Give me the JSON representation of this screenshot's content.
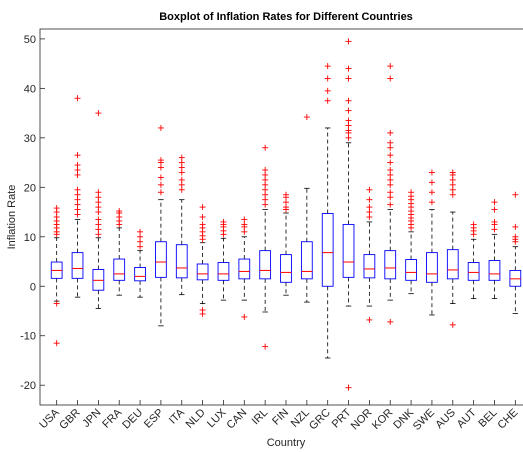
{
  "chart_data": {
    "type": "boxplot",
    "title": "Boxplot of Inflation Rates for Different Countries",
    "xlabel": "Country",
    "ylabel": "Inflation Rate",
    "ylim": [
      -24,
      52
    ],
    "yticks": [
      -20,
      -10,
      0,
      10,
      20,
      30,
      40,
      50
    ],
    "grid": false,
    "colors": {
      "box": "#0000ff",
      "median": "#ff0000",
      "outlier": "#ff0000",
      "whisker": "#000000"
    },
    "categories": [
      "USA",
      "GBR",
      "JPN",
      "FRA",
      "DEU",
      "ESP",
      "ITA",
      "NLD",
      "LUX",
      "CAN",
      "IRL",
      "FIN",
      "NZL",
      "GRC",
      "PRT",
      "NOR",
      "KOR",
      "DNK",
      "SWE",
      "AUS",
      "AUT",
      "BEL",
      "CHE"
    ],
    "boxes": [
      {
        "category": "USA",
        "whisker_low": -3,
        "q1": 1.6,
        "median": 3.2,
        "q3": 4.9,
        "whisker_high": 9.8,
        "outliers": [
          10.5,
          11,
          11.8,
          12.5,
          13.2,
          14,
          15,
          15.8,
          -3.5,
          -11.5
        ]
      },
      {
        "category": "GBR",
        "whisker_low": -2.2,
        "q1": 1.6,
        "median": 3.6,
        "q3": 6.8,
        "whisker_high": 13.5,
        "outliers": [
          14.5,
          15.5,
          16.5,
          17.5,
          18.5,
          19.5,
          22.5,
          23.5,
          24.5,
          26.5,
          38
        ]
      },
      {
        "category": "JPN",
        "whisker_low": -4.5,
        "q1": -0.8,
        "median": 1.2,
        "q3": 3.4,
        "whisker_high": 9.8,
        "outliers": [
          10.5,
          11.5,
          12.5,
          13.5,
          15,
          16,
          17,
          18,
          19,
          35
        ]
      },
      {
        "category": "FRA",
        "whisker_low": -1.8,
        "q1": 1.2,
        "median": 2.5,
        "q3": 5.5,
        "whisker_high": 11.8,
        "outliers": [
          12.5,
          13.2,
          14,
          14.8,
          15.2
        ]
      },
      {
        "category": "DEU",
        "whisker_low": -2.2,
        "q1": 1.1,
        "median": 2,
        "q3": 3.8,
        "whisker_high": 7.2,
        "outliers": [
          8,
          9,
          10,
          11
        ]
      },
      {
        "category": "ESP",
        "whisker_low": -8,
        "q1": 1.8,
        "median": 4.9,
        "q3": 9,
        "whisker_high": 17.5,
        "outliers": [
          19,
          20.5,
          22,
          24,
          25,
          25.5,
          32
        ]
      },
      {
        "category": "ITA",
        "whisker_low": -1.7,
        "q1": 1.7,
        "median": 3.7,
        "q3": 8.4,
        "whisker_high": 17.5,
        "outliers": [
          19.5,
          20.5,
          21.5,
          23,
          24,
          25,
          26
        ]
      },
      {
        "category": "NLD",
        "whisker_low": -3.5,
        "q1": 1.3,
        "median": 2.5,
        "q3": 4.5,
        "whisker_high": 8.8,
        "outliers": [
          9.5,
          10.2,
          11,
          11.8,
          12.5,
          14,
          16,
          -4.8,
          -5.6
        ]
      },
      {
        "category": "LUX",
        "whisker_low": -2.8,
        "q1": 1.2,
        "median": 2.5,
        "q3": 4.8,
        "whisker_high": 9.7,
        "outliers": [
          10.5,
          11.2,
          12,
          12.5,
          13
        ]
      },
      {
        "category": "CAN",
        "whisker_low": -2.8,
        "q1": 1.5,
        "median": 3,
        "q3": 5.5,
        "whisker_high": 10,
        "outliers": [
          11,
          12,
          12.5,
          13.5,
          -6.2
        ]
      },
      {
        "category": "IRL",
        "whisker_low": -5.2,
        "q1": 1.5,
        "median": 3.2,
        "q3": 7.2,
        "whisker_high": 15.5,
        "outliers": [
          16.5,
          17.5,
          18.5,
          19.5,
          20.5,
          21.5,
          22.5,
          23.5,
          28,
          -12.2
        ]
      },
      {
        "category": "FIN",
        "whisker_low": -1.8,
        "q1": 0.8,
        "median": 2.8,
        "q3": 6.4,
        "whisker_high": 14.8,
        "outliers": [
          15.5,
          16,
          17,
          18,
          18.5
        ]
      },
      {
        "category": "NZL",
        "whisker_low": -3.2,
        "q1": 1.5,
        "median": 3,
        "q3": 9,
        "whisker_high": 19.8,
        "outliers": [
          34.2
        ]
      },
      {
        "category": "GRC",
        "whisker_low": -14.5,
        "q1": 0,
        "median": 6.8,
        "q3": 14.7,
        "whisker_high": 32,
        "outliers": [
          37.5,
          39.5,
          42,
          44.5
        ]
      },
      {
        "category": "PRT",
        "whisker_low": -4,
        "q1": 1.8,
        "median": 4.9,
        "q3": 12.5,
        "whisker_high": 29,
        "outliers": [
          30,
          31,
          31.5,
          32.5,
          33.5,
          35.5,
          37.5,
          42,
          44,
          49.5,
          -20.5
        ]
      },
      {
        "category": "NOR",
        "whisker_low": -4,
        "q1": 1.7,
        "median": 3.5,
        "q3": 6.4,
        "whisker_high": 13,
        "outliers": [
          14,
          15,
          16,
          17.5,
          19.5,
          -6.8
        ]
      },
      {
        "category": "KOR",
        "whisker_low": -2.8,
        "q1": 1.5,
        "median": 3.7,
        "q3": 7.2,
        "whisker_high": 15.5,
        "outliers": [
          16.5,
          18,
          19,
          20.5,
          21.5,
          22.5,
          23.5,
          25,
          26.5,
          28,
          29,
          31,
          42,
          44.5,
          -7.2
        ]
      },
      {
        "category": "DNK",
        "whisker_low": -1.5,
        "q1": 1.2,
        "median": 2.8,
        "q3": 5.4,
        "whisker_high": 11,
        "outliers": [
          11.8,
          12.5,
          13.2,
          13.8,
          14.5,
          15.2,
          16,
          16.7,
          17.5,
          18.2,
          19
        ]
      },
      {
        "category": "SWE",
        "whisker_low": -5.8,
        "q1": 0.8,
        "median": 2.5,
        "q3": 6.8,
        "whisker_high": 15.5,
        "outliers": [
          17,
          19,
          21,
          23
        ]
      },
      {
        "category": "AUS",
        "whisker_low": -3.5,
        "q1": 1.5,
        "median": 3.3,
        "q3": 7.4,
        "whisker_high": 15,
        "outliers": [
          18.5,
          19.5,
          20.5,
          21.5,
          22.5,
          23,
          -7.8
        ]
      },
      {
        "category": "AUT",
        "whisker_low": -2.5,
        "q1": 1.2,
        "median": 2.8,
        "q3": 4.8,
        "whisker_high": 9.5,
        "outliers": [
          10.5,
          11.2,
          11.8,
          12.5
        ]
      },
      {
        "category": "BEL",
        "whisker_low": -2.5,
        "q1": 1.2,
        "median": 2.5,
        "q3": 5.2,
        "whisker_high": 10.5,
        "outliers": [
          11.5,
          12.5,
          13,
          15.5,
          17
        ]
      },
      {
        "category": "CHE",
        "whisker_low": -5.5,
        "q1": 0,
        "median": 1.5,
        "q3": 3.2,
        "whisker_high": 8,
        "outliers": [
          9,
          9.5,
          10,
          12,
          18.5
        ]
      }
    ]
  }
}
